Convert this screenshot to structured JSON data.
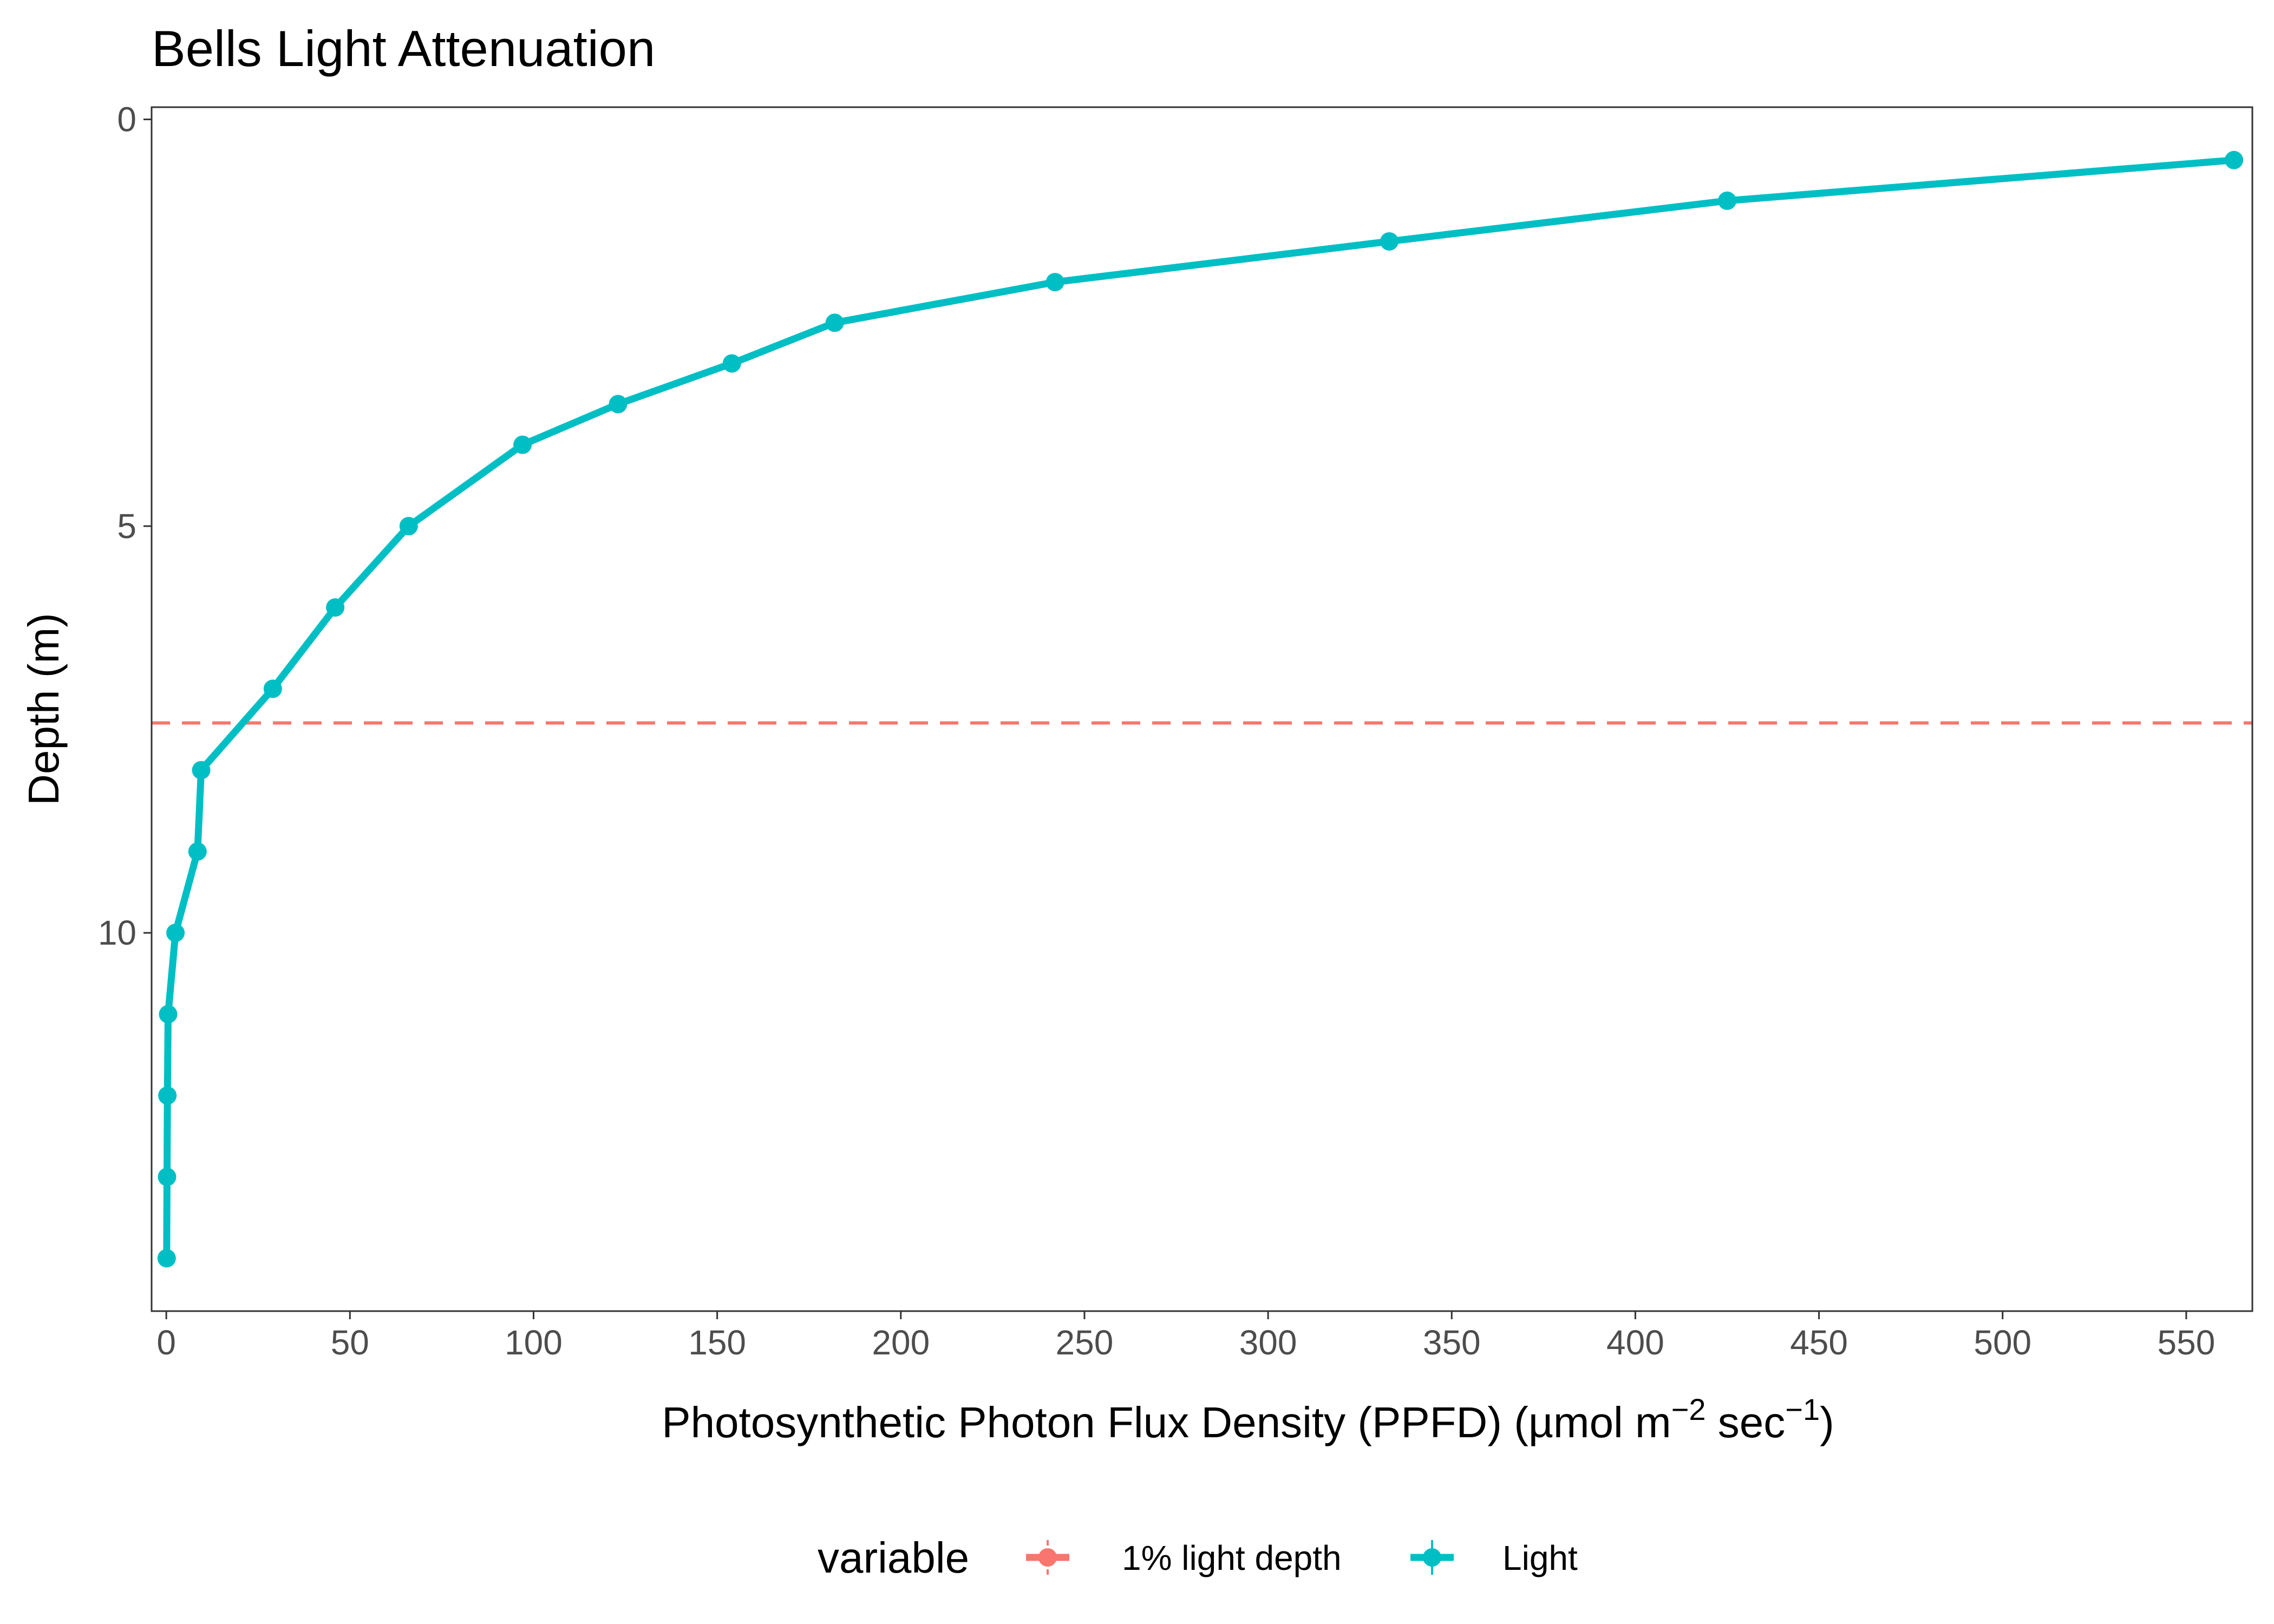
{
  "chart_data": {
    "type": "line",
    "title": "Bells Light Attenuation",
    "xlabel": {
      "main": "Photosynthetic Photon Flux Density (PPFD) (µmol m",
      "sup1": "−2",
      "mid": " sec",
      "sup2": "−1",
      "end": ")"
    },
    "ylabel": "Depth (m)",
    "xlim": [
      -4,
      568
    ],
    "ylim": [
      14.65,
      -0.15
    ],
    "y_reversed": true,
    "grid": false,
    "x_ticks": [
      0,
      50,
      100,
      150,
      200,
      250,
      300,
      350,
      400,
      450,
      500,
      550
    ],
    "y_ticks": [
      0,
      5,
      10
    ],
    "series": [
      {
        "name": "Light",
        "color": "#00BFC4",
        "points": [
          {
            "x": 563,
            "y": 0.5
          },
          {
            "x": 425,
            "y": 1.0
          },
          {
            "x": 333,
            "y": 1.5
          },
          {
            "x": 242,
            "y": 2.0
          },
          {
            "x": 182,
            "y": 2.5
          },
          {
            "x": 154,
            "y": 3.0
          },
          {
            "x": 123,
            "y": 3.5
          },
          {
            "x": 97,
            "y": 4.0
          },
          {
            "x": 66,
            "y": 5.0
          },
          {
            "x": 46,
            "y": 6.0
          },
          {
            "x": 29,
            "y": 7.0
          },
          {
            "x": 9.5,
            "y": 8.0
          },
          {
            "x": 8.5,
            "y": 9.0
          },
          {
            "x": 2.5,
            "y": 10.0
          },
          {
            "x": 0.5,
            "y": 11.0
          },
          {
            "x": 0.3,
            "y": 12.0
          },
          {
            "x": 0.2,
            "y": 13.0
          },
          {
            "x": 0.1,
            "y": 14.0
          }
        ]
      },
      {
        "name": "1% light depth",
        "color": "#F8766D",
        "type": "hline",
        "y": 7.42
      }
    ],
    "legend": {
      "position": "bottom",
      "title": "variable",
      "entries": [
        {
          "label": "1% light depth",
          "color": "#F8766D"
        },
        {
          "label": "Light",
          "color": "#00BFC4"
        }
      ]
    }
  }
}
